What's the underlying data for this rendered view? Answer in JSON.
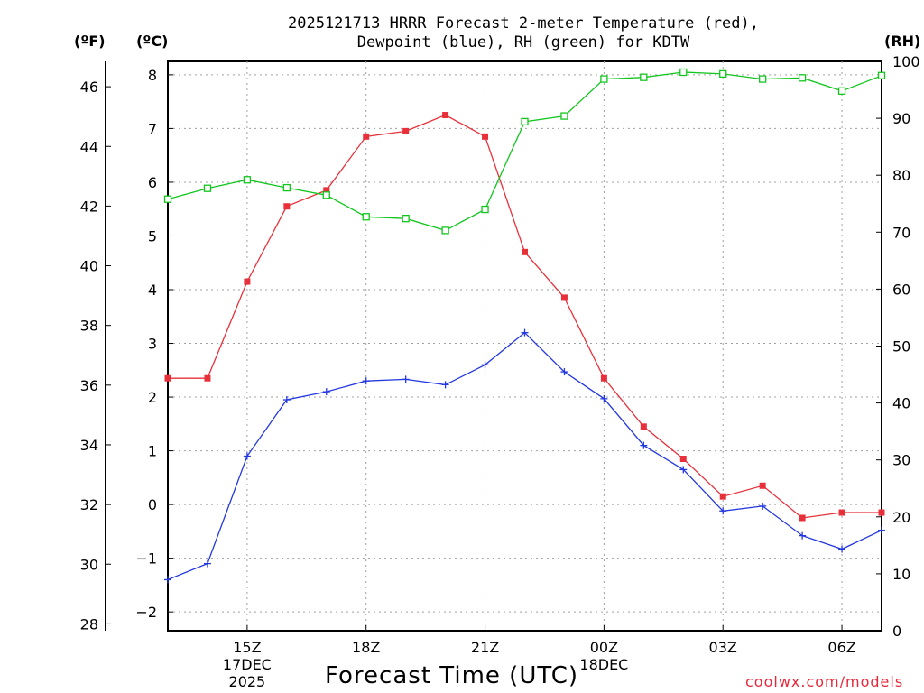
{
  "chart_data": {
    "type": "line",
    "title_line1": "2025121713 HRRR Forecast 2-meter Temperature (red),",
    "title_line2": "Dewpoint (blue), RH (green) for KDTW",
    "units": {
      "fahrenheit": "(ºF)",
      "celsius": "(ºC)",
      "rh": "(RH)"
    },
    "xlabel": "Forecast Time (UTC)",
    "credit": "coolwx.com/models",
    "x_hours": [
      13,
      14,
      15,
      16,
      17,
      18,
      19,
      20,
      21,
      22,
      23,
      24,
      25,
      26,
      27,
      28,
      29,
      30,
      31
    ],
    "xlim": [
      13,
      31
    ],
    "x_ticks": [
      {
        "hour": 15,
        "lines": [
          "15Z",
          "17DEC",
          "2025"
        ]
      },
      {
        "hour": 18,
        "lines": [
          "18Z"
        ]
      },
      {
        "hour": 21,
        "lines": [
          "21Z"
        ]
      },
      {
        "hour": 24,
        "lines": [
          "00Z",
          "18DEC"
        ]
      },
      {
        "hour": 27,
        "lines": [
          "03Z"
        ]
      },
      {
        "hour": 30,
        "lines": [
          "06Z"
        ]
      }
    ],
    "celsius_axis": {
      "ylim": [
        -2.35,
        8.25
      ],
      "ticks": [
        -2,
        -1,
        0,
        1,
        2,
        3,
        4,
        5,
        6,
        7,
        8
      ]
    },
    "fahrenheit_axis": {
      "ticks": [
        28,
        30,
        32,
        34,
        36,
        38,
        40,
        42,
        44,
        46
      ]
    },
    "rh_axis": {
      "ylim": [
        0,
        100
      ],
      "ticks": [
        0,
        10,
        20,
        30,
        40,
        50,
        60,
        70,
        80,
        90,
        100
      ]
    },
    "series": [
      {
        "name": "2-meter Temperature",
        "color": "#e8303a",
        "marker": "filled-square",
        "axis": "celsius",
        "values": [
          2.35,
          2.35,
          4.15,
          5.55,
          5.85,
          6.85,
          6.95,
          7.25,
          6.85,
          4.7,
          3.85,
          2.35,
          1.45,
          0.85,
          0.15,
          0.35,
          -0.25,
          -0.15,
          -0.15
        ]
      },
      {
        "name": "Dewpoint",
        "color": "#2438e0",
        "marker": "plus",
        "axis": "celsius",
        "values": [
          -1.4,
          -1.1,
          0.9,
          1.95,
          2.1,
          2.3,
          2.33,
          2.23,
          2.6,
          3.2,
          2.47,
          1.97,
          1.1,
          0.65,
          -0.12,
          -0.03,
          -0.58,
          -0.83,
          -0.48
        ]
      },
      {
        "name": "RH",
        "color": "#12c61e",
        "marker": "open-square",
        "axis": "rh",
        "values": [
          75.8,
          77.7,
          79.2,
          77.8,
          76.5,
          72.7,
          72.4,
          70.3,
          74.0,
          89.4,
          90.4,
          96.9,
          97.2,
          98.1,
          97.8,
          96.9,
          97.1,
          94.8,
          97.5
        ]
      }
    ]
  }
}
